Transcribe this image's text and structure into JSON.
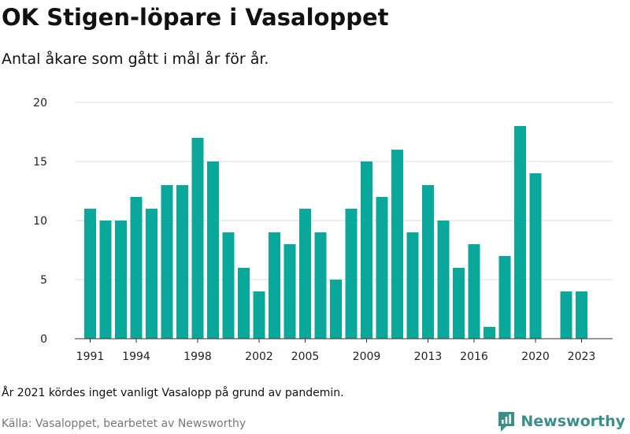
{
  "title": "OK Stigen-löpare i Vasaloppet",
  "subtitle": "Antal åkare som gått i mål år för år.",
  "note": "År 2021 kördes inget vanligt Vasalopp på grund av pandemin.",
  "source": "Källa: Vasaloppet, bearbetet av Newsworthy",
  "brand": {
    "name": "Newsworthy",
    "icon": "newsworthy-logo-icon",
    "color": "#3a8f8a"
  },
  "chart_data": {
    "type": "bar",
    "title": "OK Stigen-löpare i Vasaloppet",
    "subtitle": "Antal åkare som gått i mål år för år.",
    "x": [
      1991,
      1992,
      1993,
      1994,
      1995,
      1996,
      1997,
      1998,
      1999,
      2000,
      2001,
      2002,
      2003,
      2004,
      2005,
      2006,
      2007,
      2008,
      2009,
      2010,
      2011,
      2012,
      2013,
      2014,
      2015,
      2016,
      2017,
      2018,
      2019,
      2020,
      2021,
      2022,
      2023
    ],
    "values": [
      11,
      10,
      10,
      12,
      11,
      13,
      13,
      17,
      15,
      9,
      6,
      4,
      9,
      8,
      11,
      9,
      5,
      11,
      15,
      12,
      16,
      9,
      13,
      10,
      6,
      8,
      1,
      7,
      18,
      14,
      null,
      4,
      4
    ],
    "x_ticks": [
      "1991",
      "1994",
      "1998",
      "2002",
      "2005",
      "2009",
      "2013",
      "2016",
      "2020",
      "2023"
    ],
    "y_ticks": [
      "0",
      "5",
      "10",
      "15",
      "20"
    ],
    "ylim": [
      0,
      20
    ],
    "xlabel": "",
    "ylabel": "",
    "grid": "horizontal",
    "bar_color": "#0aa89b",
    "grid_color": "#dddddd"
  }
}
